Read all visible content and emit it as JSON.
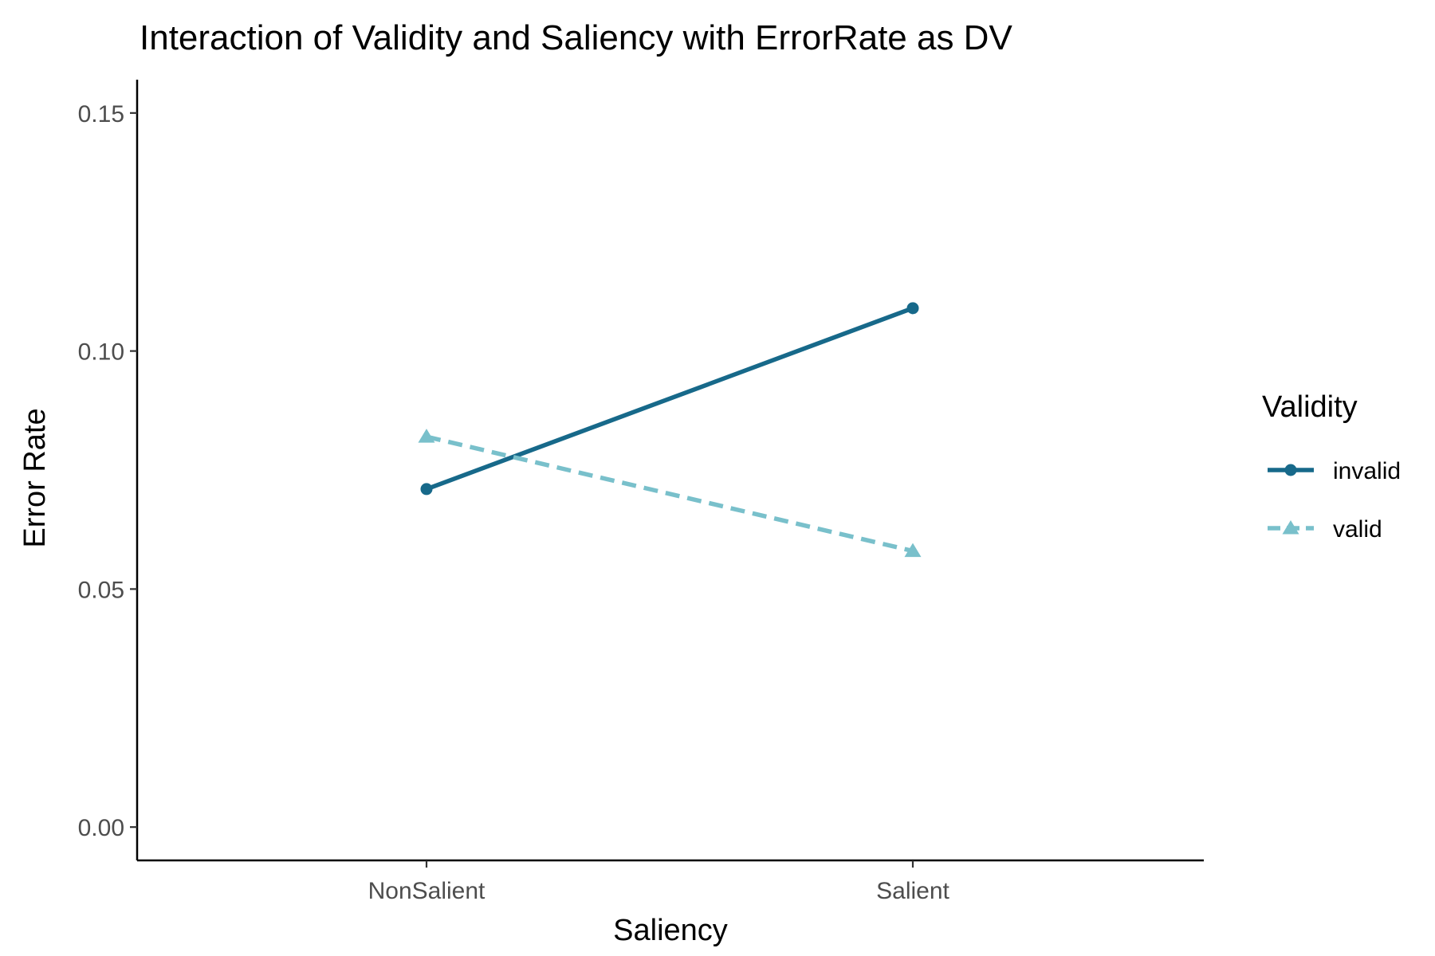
{
  "chart_data": {
    "type": "line",
    "title": "Interaction of Validity and Saliency with ErrorRate as DV",
    "xlabel": "Saliency",
    "ylabel": "Error Rate",
    "categories": [
      "NonSalient",
      "Salient"
    ],
    "ylim": [
      -0.007,
      0.157
    ],
    "yticks": [
      0.0,
      0.05,
      0.1,
      0.15
    ],
    "ytick_labels": [
      "0.00",
      "0.05",
      "0.10",
      "0.15"
    ],
    "grid": false,
    "legend": {
      "title": "Validity",
      "position": "right"
    },
    "series": [
      {
        "name": "invalid",
        "values": [
          0.071,
          0.109
        ],
        "color": "#17698a",
        "dash": "solid",
        "marker": "circle"
      },
      {
        "name": "valid",
        "values": [
          0.082,
          0.058
        ],
        "color": "#79c0cb",
        "dash": "dashed",
        "marker": "triangle"
      }
    ]
  }
}
